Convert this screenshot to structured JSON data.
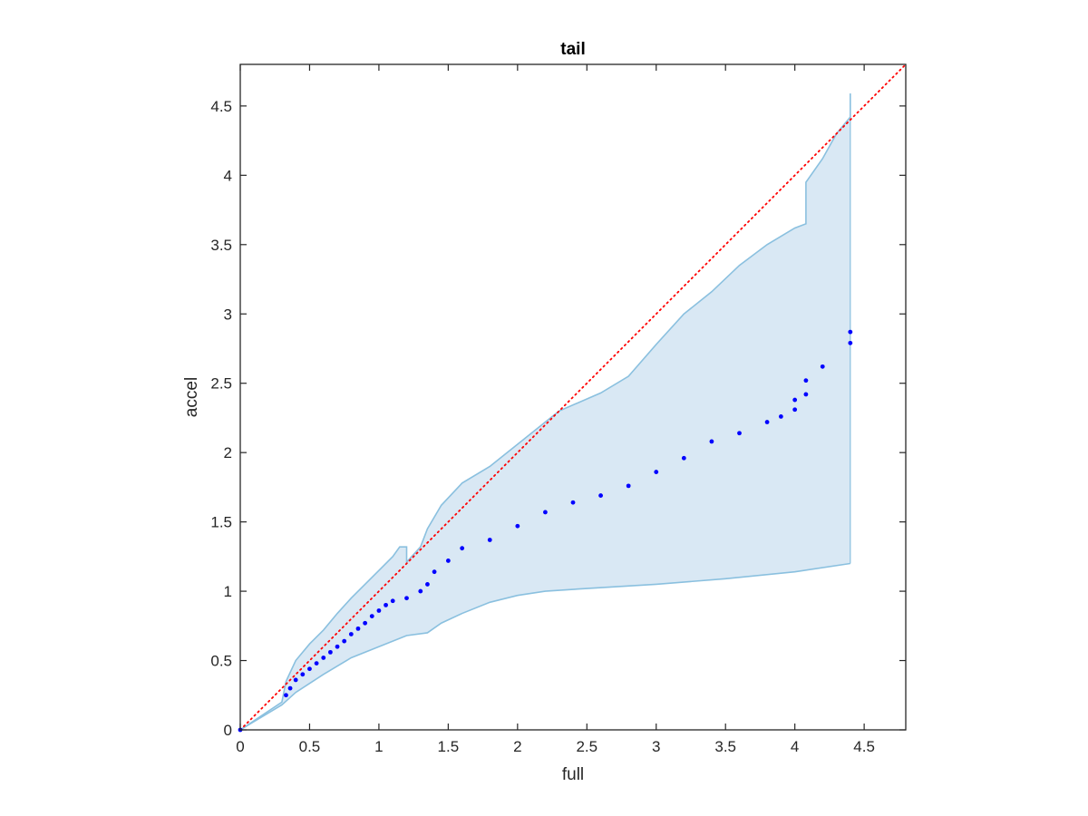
{
  "chart_data": {
    "type": "scatter",
    "title": "tail",
    "xlabel": "full",
    "ylabel": "accel",
    "xlim": [
      0,
      4.8
    ],
    "ylim": [
      0,
      4.8
    ],
    "xticks": [
      "0",
      "0.5",
      "1",
      "1.5",
      "2",
      "2.5",
      "3",
      "3.5",
      "4",
      "4.5"
    ],
    "yticks": [
      "0",
      "0.5",
      "1",
      "1.5",
      "2",
      "2.5",
      "3",
      "3.5",
      "4",
      "4.5"
    ],
    "xtick_values": [
      0,
      0.5,
      1,
      1.5,
      2,
      2.5,
      3,
      3.5,
      4,
      4.5
    ],
    "ytick_values": [
      0,
      0.5,
      1,
      1.5,
      2,
      2.5,
      3,
      3.5,
      4,
      4.5
    ],
    "grid": false,
    "reference_line": {
      "from": [
        0,
        0
      ],
      "to": [
        4.8,
        4.8
      ],
      "color": "#ff0000",
      "style": "dotted"
    },
    "band": {
      "fill_color": "#d9e8f4",
      "edge_color": "#8ac0df",
      "upper": [
        [
          0,
          0
        ],
        [
          0.3,
          0.2
        ],
        [
          0.33,
          0.35
        ],
        [
          0.4,
          0.5
        ],
        [
          0.5,
          0.62
        ],
        [
          0.6,
          0.72
        ],
        [
          0.7,
          0.84
        ],
        [
          0.8,
          0.95
        ],
        [
          0.9,
          1.05
        ],
        [
          1.0,
          1.15
        ],
        [
          1.1,
          1.25
        ],
        [
          1.15,
          1.32
        ],
        [
          1.2,
          1.32
        ],
        [
          1.2,
          1.21
        ],
        [
          1.3,
          1.32
        ],
        [
          1.35,
          1.45
        ],
        [
          1.45,
          1.62
        ],
        [
          1.6,
          1.78
        ],
        [
          1.8,
          1.9
        ],
        [
          2.0,
          2.06
        ],
        [
          2.2,
          2.22
        ],
        [
          2.3,
          2.3
        ],
        [
          2.6,
          2.43
        ],
        [
          2.8,
          2.55
        ],
        [
          3.0,
          2.78
        ],
        [
          3.2,
          3.0
        ],
        [
          3.4,
          3.16
        ],
        [
          3.6,
          3.35
        ],
        [
          3.8,
          3.5
        ],
        [
          4.0,
          3.62
        ],
        [
          4.08,
          3.65
        ],
        [
          4.08,
          3.95
        ],
        [
          4.2,
          4.12
        ],
        [
          4.3,
          4.3
        ],
        [
          4.4,
          4.42
        ],
        [
          4.4,
          4.59
        ]
      ],
      "lower": [
        [
          0,
          0
        ],
        [
          0.3,
          0.18
        ],
        [
          0.4,
          0.27
        ],
        [
          0.6,
          0.4
        ],
        [
          0.8,
          0.52
        ],
        [
          1.0,
          0.6
        ],
        [
          1.2,
          0.68
        ],
        [
          1.35,
          0.7
        ],
        [
          1.45,
          0.77
        ],
        [
          1.6,
          0.84
        ],
        [
          1.8,
          0.92
        ],
        [
          2.0,
          0.97
        ],
        [
          2.2,
          1.0
        ],
        [
          2.5,
          1.02
        ],
        [
          3.0,
          1.05
        ],
        [
          3.5,
          1.09
        ],
        [
          4.0,
          1.14
        ],
        [
          4.4,
          1.2
        ]
      ]
    },
    "series": [
      {
        "color": "#0000ff",
        "points": [
          [
            0,
            0
          ],
          [
            0.33,
            0.25
          ],
          [
            0.36,
            0.3
          ],
          [
            0.4,
            0.36
          ],
          [
            0.45,
            0.4
          ],
          [
            0.5,
            0.44
          ],
          [
            0.55,
            0.48
          ],
          [
            0.6,
            0.52
          ],
          [
            0.65,
            0.56
          ],
          [
            0.7,
            0.6
          ],
          [
            0.75,
            0.64
          ],
          [
            0.8,
            0.69
          ],
          [
            0.85,
            0.73
          ],
          [
            0.9,
            0.77
          ],
          [
            0.95,
            0.82
          ],
          [
            1.0,
            0.86
          ],
          [
            1.05,
            0.9
          ],
          [
            1.1,
            0.93
          ],
          [
            1.2,
            0.95
          ],
          [
            1.3,
            1.0
          ],
          [
            1.35,
            1.05
          ],
          [
            1.4,
            1.14
          ],
          [
            1.5,
            1.22
          ],
          [
            1.6,
            1.31
          ],
          [
            1.8,
            1.37
          ],
          [
            2.0,
            1.47
          ],
          [
            2.2,
            1.57
          ],
          [
            2.4,
            1.64
          ],
          [
            2.6,
            1.69
          ],
          [
            2.8,
            1.76
          ],
          [
            3.0,
            1.86
          ],
          [
            3.2,
            1.96
          ],
          [
            3.4,
            2.08
          ],
          [
            3.6,
            2.14
          ],
          [
            3.8,
            2.22
          ],
          [
            3.9,
            2.26
          ],
          [
            4.0,
            2.31
          ],
          [
            4.0,
            2.38
          ],
          [
            4.08,
            2.42
          ],
          [
            4.08,
            2.52
          ],
          [
            4.2,
            2.62
          ],
          [
            4.4,
            2.79
          ],
          [
            4.4,
            2.87
          ]
        ]
      }
    ]
  }
}
